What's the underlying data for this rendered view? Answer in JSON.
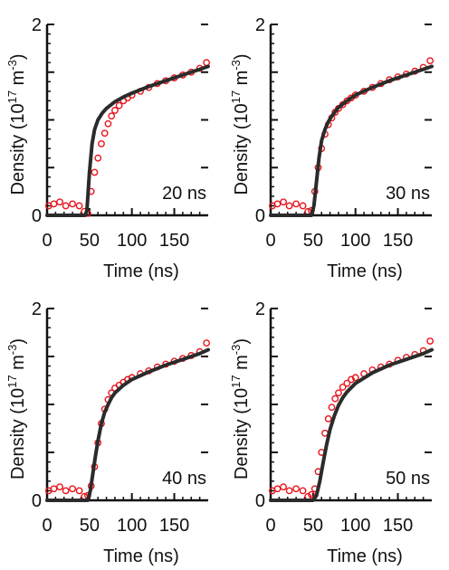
{
  "figure": {
    "xlabel": "Time (ns)",
    "ylabel_main": "Density (10",
    "ylabel_exp1": "17",
    "ylabel_mid": " m",
    "ylabel_exp2": "-3",
    "ylabel_close": ")",
    "marker_color": "#e8141b",
    "curve_color": "#2b2b2b"
  },
  "chart_data": [
    {
      "type": "scatter",
      "panel_label": "20 ns",
      "xlim": [
        0,
        190
      ],
      "ylim": [
        0,
        2
      ],
      "xticks": [
        "0",
        "50",
        "100",
        "150"
      ],
      "yticks": [
        "0",
        "2"
      ],
      "series": [
        {
          "kind": "measured",
          "x": [
            2,
            8,
            15,
            22,
            30,
            38,
            44,
            48,
            52,
            56,
            60,
            64,
            68,
            72,
            76,
            80,
            85,
            90,
            95,
            100,
            110,
            120,
            130,
            140,
            150,
            160,
            170,
            180,
            188
          ],
          "y": [
            0.1,
            0.12,
            0.14,
            0.1,
            0.12,
            0.1,
            0.04,
            0.02,
            0.25,
            0.45,
            0.6,
            0.75,
            0.86,
            0.96,
            1.04,
            1.1,
            1.15,
            1.2,
            1.23,
            1.26,
            1.3,
            1.34,
            1.38,
            1.41,
            1.44,
            1.47,
            1.5,
            1.54,
            1.6
          ]
        },
        {
          "kind": "model",
          "x": [
            0,
            45,
            47,
            50,
            53,
            56,
            60,
            65,
            70,
            80,
            90,
            100,
            120,
            140,
            160,
            180,
            190
          ],
          "y": [
            0,
            0,
            0.05,
            0.45,
            0.75,
            0.9,
            1.0,
            1.07,
            1.12,
            1.19,
            1.24,
            1.28,
            1.35,
            1.41,
            1.47,
            1.53,
            1.56
          ]
        }
      ]
    },
    {
      "type": "scatter",
      "panel_label": "30 ns",
      "xlim": [
        0,
        190
      ],
      "ylim": [
        0,
        2
      ],
      "xticks": [
        "0",
        "50",
        "100",
        "150"
      ],
      "yticks": [
        "0",
        "2"
      ],
      "series": [
        {
          "kind": "measured",
          "x": [
            2,
            8,
            15,
            22,
            30,
            38,
            44,
            48,
            52,
            56,
            60,
            64,
            68,
            72,
            76,
            80,
            85,
            90,
            95,
            100,
            110,
            120,
            130,
            140,
            150,
            160,
            170,
            180,
            188
          ],
          "y": [
            0.1,
            0.12,
            0.14,
            0.1,
            0.12,
            0.1,
            0.04,
            0.05,
            0.25,
            0.5,
            0.7,
            0.85,
            0.95,
            1.02,
            1.08,
            1.12,
            1.16,
            1.2,
            1.23,
            1.26,
            1.3,
            1.34,
            1.38,
            1.42,
            1.45,
            1.48,
            1.51,
            1.55,
            1.62
          ]
        },
        {
          "kind": "model",
          "x": [
            0,
            48,
            51,
            54,
            57,
            60,
            64,
            68,
            72,
            80,
            90,
            100,
            120,
            140,
            160,
            180,
            190
          ],
          "y": [
            0,
            0,
            0.1,
            0.35,
            0.6,
            0.78,
            0.9,
            0.98,
            1.04,
            1.13,
            1.2,
            1.26,
            1.34,
            1.41,
            1.47,
            1.53,
            1.56
          ]
        }
      ]
    },
    {
      "type": "scatter",
      "panel_label": "40 ns",
      "xlim": [
        0,
        190
      ],
      "ylim": [
        0,
        2
      ],
      "xticks": [
        "0",
        "50",
        "100",
        "150"
      ],
      "yticks": [
        "0",
        "2"
      ],
      "series": [
        {
          "kind": "measured",
          "x": [
            2,
            8,
            15,
            22,
            30,
            38,
            44,
            48,
            52,
            56,
            60,
            64,
            68,
            72,
            76,
            80,
            85,
            90,
            95,
            100,
            110,
            120,
            130,
            140,
            150,
            160,
            170,
            180,
            188
          ],
          "y": [
            0.1,
            0.12,
            0.14,
            0.1,
            0.12,
            0.1,
            0.04,
            0.05,
            0.15,
            0.35,
            0.6,
            0.8,
            0.95,
            1.05,
            1.12,
            1.17,
            1.2,
            1.23,
            1.26,
            1.28,
            1.32,
            1.35,
            1.39,
            1.42,
            1.45,
            1.48,
            1.51,
            1.55,
            1.64
          ]
        },
        {
          "kind": "model",
          "x": [
            0,
            48,
            51,
            54,
            57,
            60,
            64,
            68,
            72,
            76,
            80,
            90,
            100,
            120,
            140,
            160,
            180,
            190
          ],
          "y": [
            0,
            0,
            0.1,
            0.28,
            0.46,
            0.62,
            0.8,
            0.92,
            1.0,
            1.07,
            1.12,
            1.2,
            1.26,
            1.34,
            1.41,
            1.47,
            1.53,
            1.57
          ]
        }
      ]
    },
    {
      "type": "scatter",
      "panel_label": "50 ns",
      "xlim": [
        0,
        190
      ],
      "ylim": [
        0,
        2
      ],
      "xticks": [
        "0",
        "50",
        "100",
        "150"
      ],
      "yticks": [
        "0",
        "2"
      ],
      "series": [
        {
          "kind": "measured",
          "x": [
            2,
            8,
            15,
            22,
            30,
            38,
            44,
            48,
            52,
            56,
            60,
            64,
            68,
            72,
            76,
            80,
            85,
            90,
            95,
            100,
            110,
            120,
            130,
            140,
            150,
            160,
            170,
            180,
            188
          ],
          "y": [
            0.1,
            0.12,
            0.14,
            0.1,
            0.12,
            0.1,
            0.04,
            0.06,
            0.12,
            0.3,
            0.5,
            0.7,
            0.85,
            0.97,
            1.06,
            1.12,
            1.18,
            1.22,
            1.26,
            1.28,
            1.32,
            1.36,
            1.39,
            1.42,
            1.46,
            1.49,
            1.52,
            1.56,
            1.66
          ]
        },
        {
          "kind": "model",
          "x": [
            0,
            50,
            54,
            58,
            62,
            66,
            70,
            75,
            80,
            85,
            90,
            100,
            120,
            140,
            160,
            180,
            190
          ],
          "y": [
            0,
            0,
            0.05,
            0.2,
            0.4,
            0.58,
            0.74,
            0.88,
            0.99,
            1.07,
            1.13,
            1.22,
            1.33,
            1.41,
            1.47,
            1.53,
            1.57
          ]
        }
      ]
    }
  ]
}
